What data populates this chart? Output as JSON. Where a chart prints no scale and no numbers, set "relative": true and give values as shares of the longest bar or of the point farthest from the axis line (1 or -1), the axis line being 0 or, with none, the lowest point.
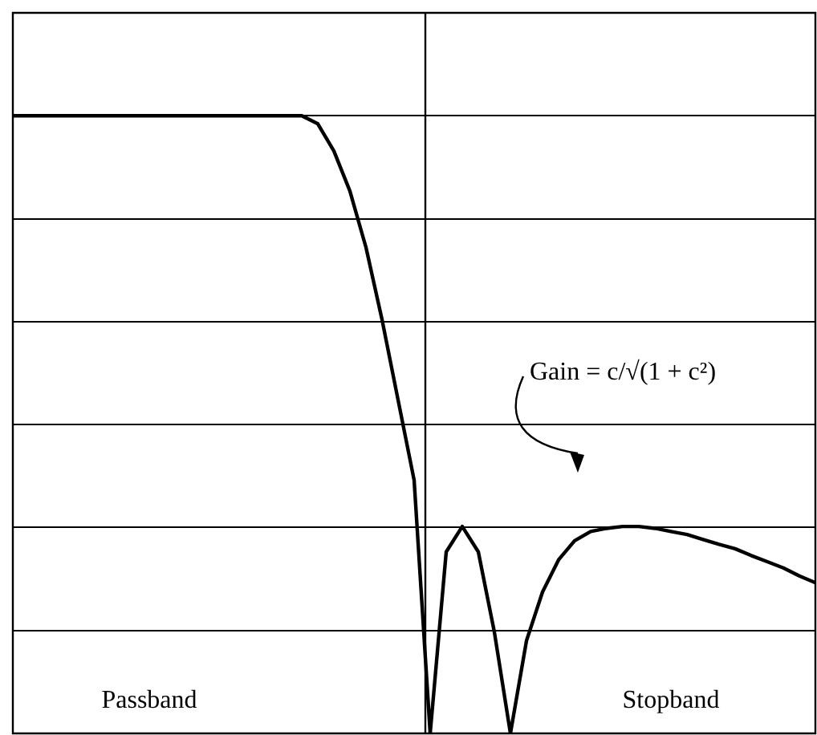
{
  "chart_data": {
    "type": "line",
    "relative": true,
    "grid": "y",
    "legend": false,
    "marker": "none",
    "line_style": "solid",
    "categories": [
      null,
      null,
      null,
      null,
      null,
      null,
      null,
      null,
      null,
      null,
      null,
      null,
      null,
      null,
      null,
      null,
      null,
      null,
      null,
      null,
      null,
      null,
      null,
      null,
      null,
      null,
      null,
      null,
      null,
      null,
      null,
      null,
      null,
      null,
      null,
      null,
      null,
      null,
      null,
      null,
      null,
      null,
      null,
      null,
      null,
      null,
      null,
      null,
      null,
      null,
      null
    ],
    "series": [
      {
        "color": "#000000",
        "values": [
          1,
          1,
          1,
          1,
          1,
          1,
          1,
          1,
          1,
          1,
          1,
          1,
          1,
          1,
          1,
          1,
          1,
          1,
          1,
          0.987,
          0.943,
          0.878,
          0.787,
          0.67,
          0.54,
          0.41,
          0,
          0.294,
          0.335,
          0.294,
          0.164,
          0,
          0.15,
          0.229,
          0.281,
          0.312,
          0.327,
          0.332,
          0.335,
          0.335,
          0.332,
          0.327,
          0.322,
          0.314,
          0.306,
          0.299,
          0.288,
          0.278,
          0.268,
          0.255,
          0.244
        ]
      }
    ],
    "annotations": [
      "Passband",
      "Stopband",
      "Gain = c/√(1 + c²)"
    ]
  }
}
